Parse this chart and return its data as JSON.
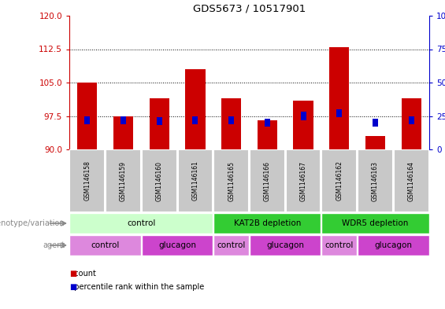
{
  "title": "GDS5673 / 10517901",
  "samples": [
    "GSM1146158",
    "GSM1146159",
    "GSM1146160",
    "GSM1146161",
    "GSM1146165",
    "GSM1146166",
    "GSM1146167",
    "GSM1146162",
    "GSM1146163",
    "GSM1146164"
  ],
  "count_values": [
    105.0,
    97.5,
    101.5,
    108.0,
    101.5,
    96.5,
    101.0,
    113.0,
    93.0,
    101.5
  ],
  "percentile_values": [
    22.0,
    22.0,
    21.0,
    22.0,
    22.0,
    20.0,
    25.0,
    27.0,
    20.0,
    22.0
  ],
  "ylim_left": [
    90,
    120
  ],
  "ylim_right": [
    0,
    100
  ],
  "yticks_left": [
    90,
    97.5,
    105,
    112.5,
    120
  ],
  "yticks_right": [
    0,
    25,
    50,
    75,
    100
  ],
  "count_color": "#cc0000",
  "percentile_color": "#0000cc",
  "base_value": 90,
  "genotype_groups": [
    {
      "label": "control",
      "start": 0,
      "end": 4,
      "color": "#ccffcc"
    },
    {
      "label": "KAT2B depletion",
      "start": 4,
      "end": 7,
      "color": "#33cc33"
    },
    {
      "label": "WDR5 depletion",
      "start": 7,
      "end": 10,
      "color": "#33cc33"
    }
  ],
  "agent_groups": [
    {
      "label": "control",
      "start": 0,
      "end": 2,
      "color": "#dd88dd"
    },
    {
      "label": "glucagon",
      "start": 2,
      "end": 4,
      "color": "#cc44cc"
    },
    {
      "label": "control",
      "start": 4,
      "end": 5,
      "color": "#dd88dd"
    },
    {
      "label": "glucagon",
      "start": 5,
      "end": 7,
      "color": "#cc44cc"
    },
    {
      "label": "control",
      "start": 7,
      "end": 8,
      "color": "#dd88dd"
    },
    {
      "label": "glucagon",
      "start": 8,
      "end": 10,
      "color": "#cc44cc"
    }
  ],
  "legend_count_label": "count",
  "legend_percentile_label": "percentile rank within the sample",
  "genotype_label": "genotype/variation",
  "agent_label": "agent",
  "tick_color_left": "#cc0000",
  "tick_color_right": "#0000cc",
  "gray_label_color": "#888888",
  "sample_box_color": "#c8c8c8",
  "sample_box_edge_color": "#ffffff"
}
